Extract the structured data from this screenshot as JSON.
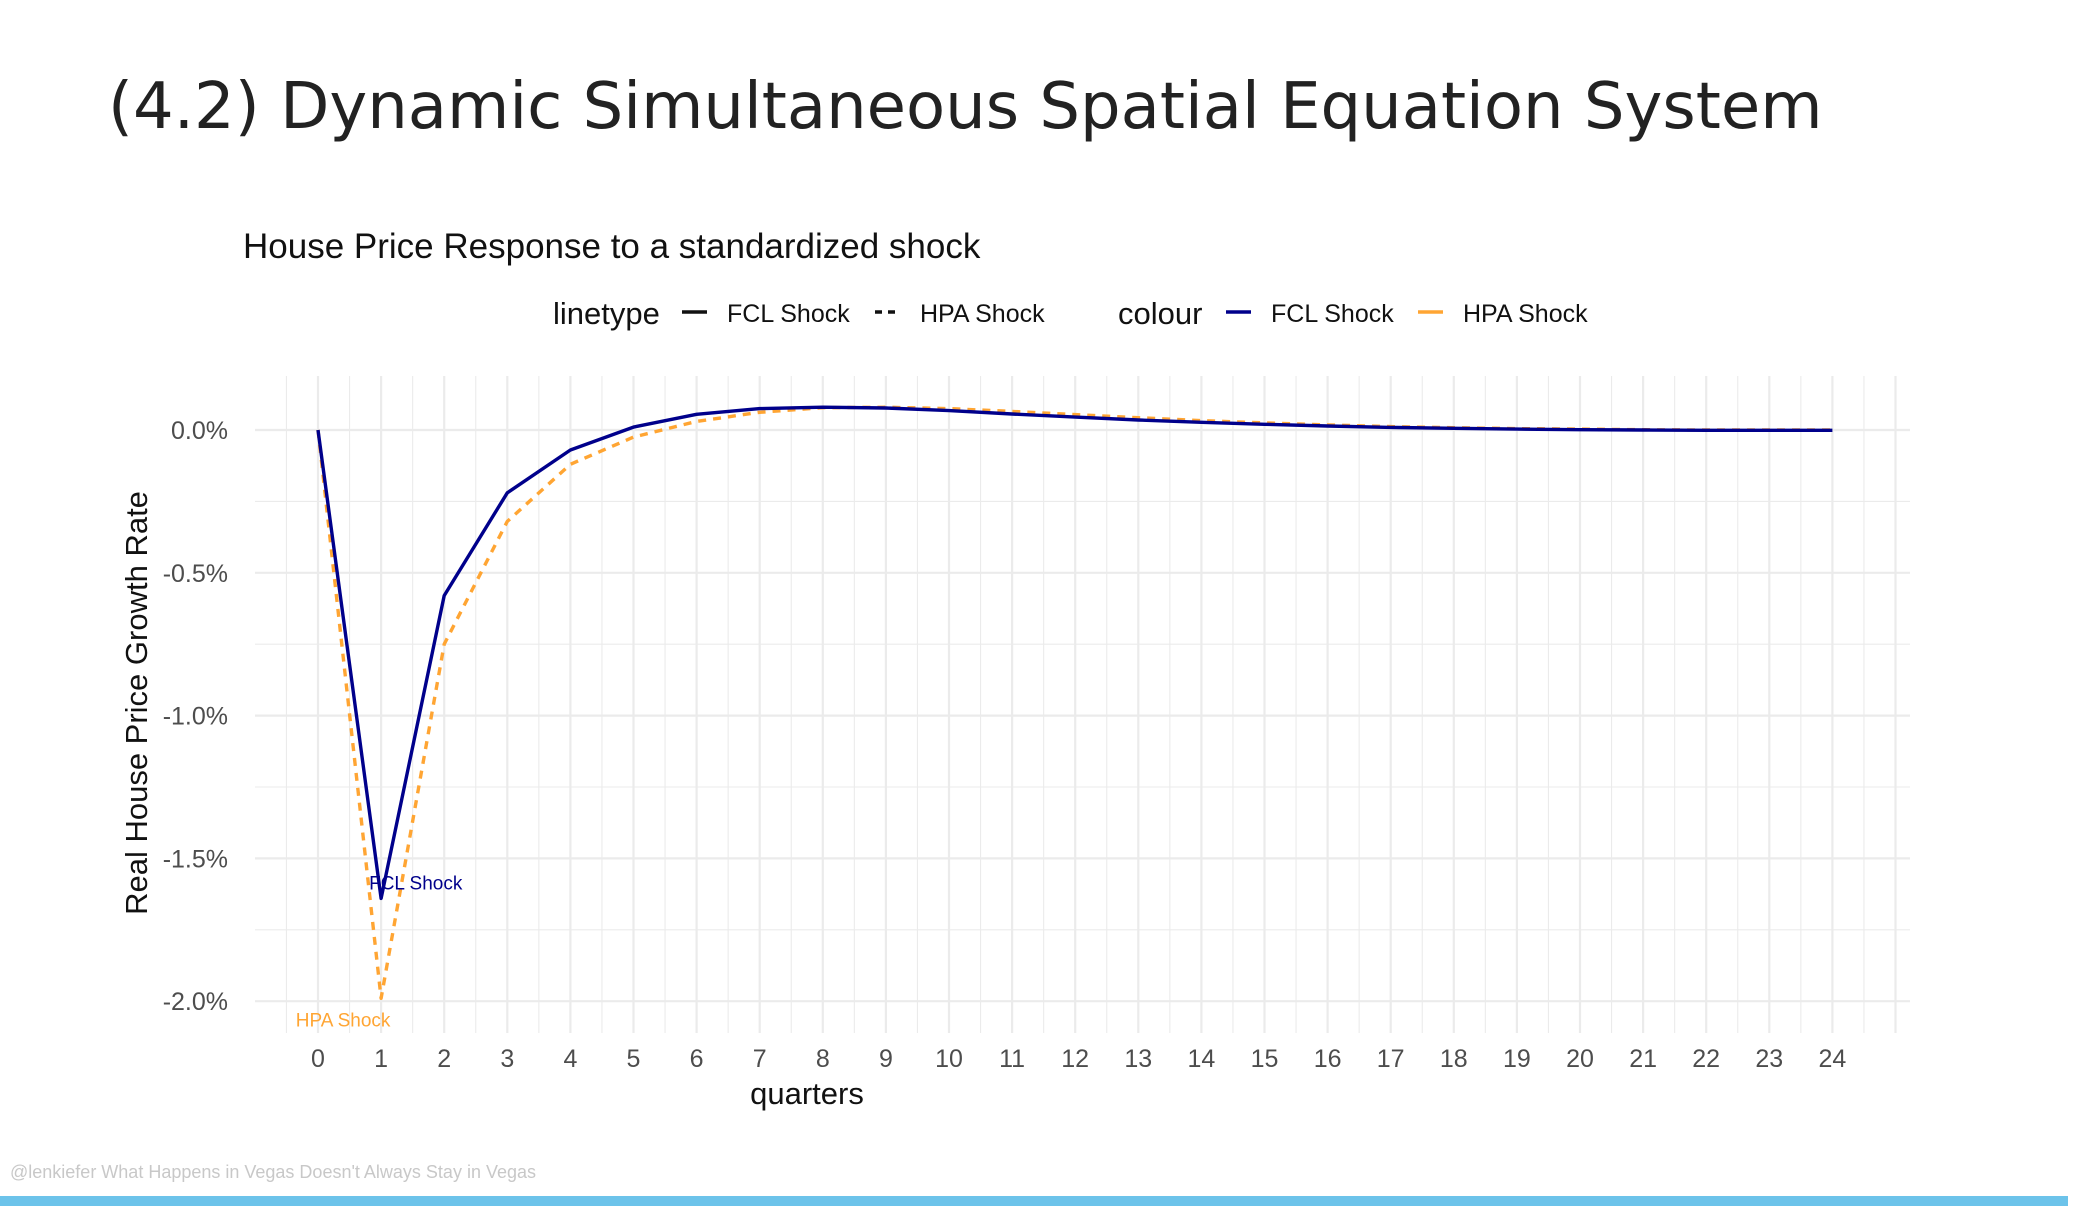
{
  "slide": {
    "title": "(4.2) Dynamic Simultaneous Spatial Equation System",
    "footer": "@lenkiefer What Happens in Vegas Doesn't Always Stay in Vegas"
  },
  "colors": {
    "fcl": "#00008b",
    "hpa": "#ffa533",
    "grid": "#ebebeb",
    "footer_bar": "#6cc3ea"
  },
  "legend": {
    "linetype_title": "linetype",
    "colour_title": "colour",
    "linetype_items": [
      {
        "label": "FCL Shock",
        "dash": "solid"
      },
      {
        "label": "HPA Shock",
        "dash": "dashed"
      }
    ],
    "colour_items": [
      {
        "label": "FCL Shock",
        "color": "#00008b"
      },
      {
        "label": "HPA Shock",
        "color": "#ffa533"
      }
    ]
  },
  "chart_data": {
    "type": "line",
    "title": "House Price Response to a standardized shock",
    "xlabel": "quarters",
    "ylabel": "Real House Price Growth Rate",
    "xlim": [
      0,
      24
    ],
    "ylim": [
      -2.1,
      0.18
    ],
    "x_ticks": [
      "0",
      "1",
      "2",
      "3",
      "4",
      "5",
      "6",
      "7",
      "8",
      "9",
      "10",
      "11",
      "12",
      "13",
      "14",
      "15",
      "16",
      "17",
      "18",
      "19",
      "20",
      "21",
      "22",
      "23",
      "24"
    ],
    "y_ticks": [
      {
        "value": 0.0,
        "label": "0.0%"
      },
      {
        "value": -0.5,
        "label": "-0.5%"
      },
      {
        "value": -1.0,
        "label": "-1.0%"
      },
      {
        "value": -1.5,
        "label": "-1.5%"
      },
      {
        "value": -2.0,
        "label": "-2.0%"
      }
    ],
    "grid": true,
    "legend_position": "top",
    "x": [
      0,
      1,
      2,
      3,
      4,
      5,
      6,
      7,
      8,
      9,
      10,
      11,
      12,
      13,
      14,
      15,
      16,
      17,
      18,
      19,
      20,
      21,
      22,
      23,
      24
    ],
    "series": [
      {
        "name": "FCL Shock",
        "linetype": "solid",
        "color": "#00008b",
        "values": [
          0.0,
          -1.64,
          -0.58,
          -0.22,
          -0.07,
          0.01,
          0.055,
          0.075,
          0.08,
          0.077,
          0.068,
          0.056,
          0.045,
          0.035,
          0.027,
          0.02,
          0.014,
          0.009,
          0.006,
          0.003,
          0.001,
          0.0,
          -0.001,
          -0.001,
          -0.001
        ]
      },
      {
        "name": "HPA Shock",
        "linetype": "dashed",
        "color": "#ffa533",
        "values": [
          0.0,
          -1.99,
          -0.75,
          -0.32,
          -0.12,
          -0.025,
          0.03,
          0.062,
          0.078,
          0.08,
          0.075,
          0.065,
          0.054,
          0.043,
          0.033,
          0.025,
          0.018,
          0.012,
          0.008,
          0.005,
          0.003,
          0.001,
          0.0,
          0.0,
          0.0
        ]
      }
    ],
    "annotations": [
      {
        "text": "FCL Shock",
        "x": 1,
        "y": -1.64,
        "color": "#00008b"
      },
      {
        "text": "HPA Shock",
        "x": 1,
        "y": -1.99,
        "color": "#ffa533"
      }
    ]
  }
}
